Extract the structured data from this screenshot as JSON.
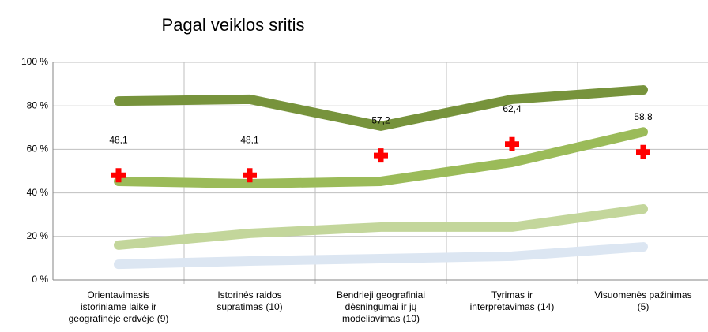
{
  "chart_data": {
    "type": "line",
    "title": "Pagal veiklos sritis",
    "categories": [
      "Orientavimasis\nistoriniame laike ir\ngeografinėje erdvėje (9)",
      "Istorinės raidos\nsupratimas (10)",
      "Bendrieji geografiniai\ndėsningumai ir jų\nmodeliavimas (10)",
      "Tyrimas ir\ninterpretavimas (14)",
      "Visuomenės pažinimas\n(5)"
    ],
    "series": [
      {
        "color": "#77933c",
        "values": [
          82.2,
          83,
          70.7,
          83,
          87.3
        ]
      },
      {
        "color": "#9bbb59",
        "values": [
          45.3,
          44.2,
          45.3,
          54,
          68
        ]
      },
      {
        "color": "#c3d69b",
        "values": [
          16,
          21.4,
          24.3,
          24.3,
          32.6
        ]
      },
      {
        "color": "#dce6f2",
        "values": [
          7.2,
          8.7,
          9.8,
          10.9,
          15.2
        ]
      },
      {
        "color": "#ff0000",
        "marker": "cross",
        "values": [
          48.1,
          48.1,
          57.2,
          62.4,
          58.8
        ],
        "value_labels": [
          "48,1",
          "48,1",
          "57,2",
          "62,4",
          "58,8"
        ]
      }
    ],
    "ylim": [
      0,
      100
    ],
    "yticks": [
      {
        "value": 0,
        "label": "0 %"
      },
      {
        "value": 20,
        "label": "20 %"
      },
      {
        "value": 40,
        "label": "40 %"
      },
      {
        "value": 60,
        "label": "60 %"
      },
      {
        "value": 80,
        "label": "80 %"
      },
      {
        "value": 100,
        "label": "100 %"
      }
    ],
    "grid": true
  }
}
